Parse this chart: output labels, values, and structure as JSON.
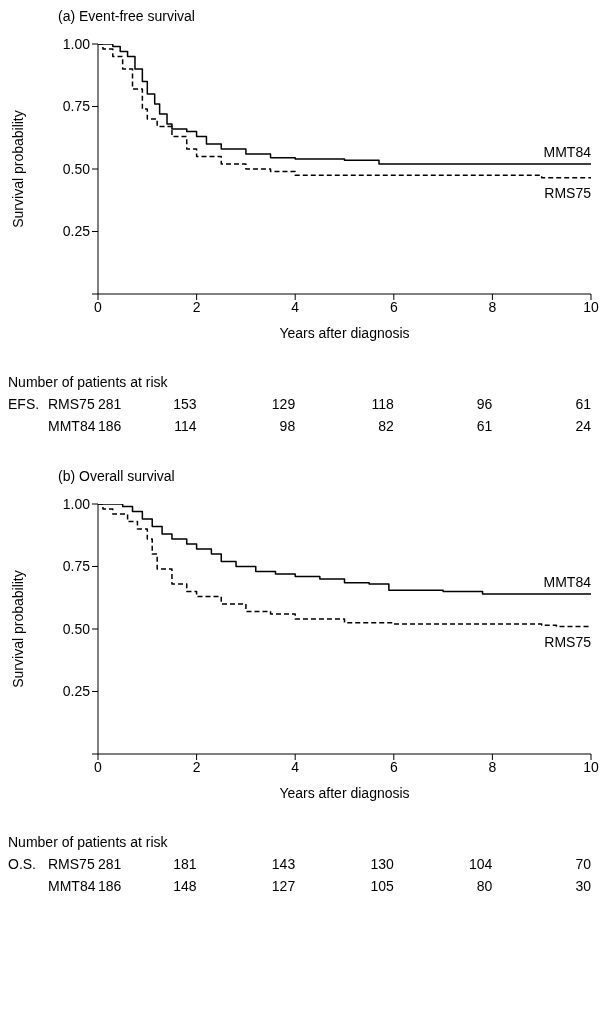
{
  "chart_data": [
    {
      "type": "step",
      "title": "(a) Event-free survival",
      "xlabel": "Years after diagnosis",
      "ylabel": "Survival probability",
      "xlim": [
        0,
        10
      ],
      "ylim": [
        0,
        1
      ],
      "xticks": [
        0,
        2,
        4,
        6,
        8,
        10
      ],
      "yticks": [
        {
          "value": 0,
          "label": null
        },
        {
          "value": 0.25,
          "label": "0.25"
        },
        {
          "value": 0.5,
          "label": "0.50"
        },
        {
          "value": 0.75,
          "label": "0.75"
        },
        {
          "value": 1,
          "label": "1.00"
        }
      ],
      "marker": "none",
      "series": [
        {
          "name": "MMT84",
          "color": "#000000",
          "line_style": "solid",
          "x": [
            0,
            0.3,
            0.45,
            0.6,
            0.75,
            0.9,
            1.0,
            1.15,
            1.25,
            1.4,
            1.5,
            1.8,
            2.0,
            2.2,
            2.5,
            3,
            3.5,
            4,
            5,
            5.7,
            10
          ],
          "values": [
            1.0,
            0.99,
            0.97,
            0.95,
            0.9,
            0.85,
            0.8,
            0.76,
            0.72,
            0.68,
            0.66,
            0.65,
            0.63,
            0.6,
            0.58,
            0.56,
            0.545,
            0.54,
            0.535,
            0.52,
            0.52
          ]
        },
        {
          "name": "RMS75",
          "color": "#000000",
          "line_style": "dashed",
          "x": [
            0,
            0.1,
            0.3,
            0.5,
            0.7,
            0.9,
            1.0,
            1.2,
            1.5,
            1.8,
            2.0,
            2.5,
            3,
            3.5,
            4,
            6,
            9,
            10
          ],
          "values": [
            1.0,
            0.98,
            0.95,
            0.9,
            0.82,
            0.74,
            0.7,
            0.67,
            0.63,
            0.58,
            0.55,
            0.52,
            0.5,
            0.49,
            0.475,
            0.475,
            0.465,
            0.465
          ]
        }
      ],
      "annotations": [
        "Number of patients at risk",
        "EFS. RMS75 281 153 129 118 96 61",
        "MMT84 186 114 98 82 61 24"
      ]
    },
    {
      "type": "step",
      "title": "(b) Overall survival",
      "xlabel": "Years after diagnosis",
      "ylabel": "Survival probability",
      "xlim": [
        0,
        10
      ],
      "ylim": [
        0,
        1
      ],
      "xticks": [
        0,
        2,
        4,
        6,
        8,
        10
      ],
      "yticks": [
        {
          "value": 0,
          "label": null
        },
        {
          "value": 0.25,
          "label": "0.25"
        },
        {
          "value": 0.5,
          "label": "0.50"
        },
        {
          "value": 0.75,
          "label": "0.75"
        },
        {
          "value": 1,
          "label": "1.00"
        }
      ],
      "marker": "none",
      "series": [
        {
          "name": "MMT84",
          "color": "#000000",
          "line_style": "solid",
          "x": [
            0,
            0.5,
            0.7,
            0.9,
            1.1,
            1.3,
            1.5,
            1.8,
            2.0,
            2.3,
            2.5,
            2.8,
            3.2,
            3.6,
            4,
            4.5,
            5,
            5.5,
            5.9,
            7,
            7.8,
            10
          ],
          "values": [
            1.0,
            0.99,
            0.97,
            0.94,
            0.91,
            0.88,
            0.86,
            0.84,
            0.82,
            0.8,
            0.77,
            0.75,
            0.73,
            0.72,
            0.71,
            0.7,
            0.685,
            0.68,
            0.655,
            0.65,
            0.64,
            0.64
          ]
        },
        {
          "name": "RMS75",
          "color": "#000000",
          "line_style": "dashed",
          "x": [
            0,
            0.1,
            0.3,
            0.6,
            0.8,
            1.0,
            1.1,
            1.2,
            1.5,
            1.8,
            2.0,
            2.5,
            3.0,
            3.5,
            4,
            5,
            6,
            9,
            9.3,
            10
          ],
          "values": [
            1.0,
            0.98,
            0.96,
            0.93,
            0.9,
            0.86,
            0.8,
            0.74,
            0.68,
            0.65,
            0.63,
            0.6,
            0.57,
            0.56,
            0.54,
            0.525,
            0.52,
            0.515,
            0.51,
            0.51
          ]
        }
      ],
      "annotations": [
        "Number of patients at risk",
        "O.S. RMS75 281 181 143 130 104 70",
        "MMT84 186 148 127 105 80 30"
      ]
    }
  ]
}
